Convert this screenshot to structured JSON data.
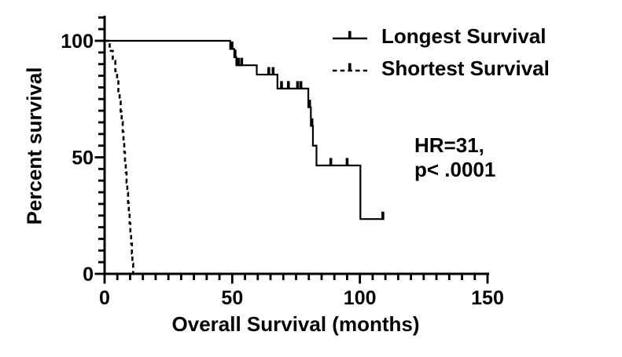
{
  "figure": {
    "background_color": "#ffffff",
    "line_color": "#000000"
  },
  "legend": {
    "items": [
      {
        "label": "Longest Survival",
        "style": "solid"
      },
      {
        "label": "Shortest Survival",
        "style": "dashed"
      }
    ]
  },
  "annotation": {
    "line1": "HR=31,",
    "line2": "p< .0001"
  },
  "chart_data": {
    "type": "line",
    "variant": "kaplan_meier_step",
    "title": "",
    "xlabel": "Overall Survival (months)",
    "ylabel": "Percent survival",
    "xlim": [
      0,
      150
    ],
    "ylim": [
      0,
      100
    ],
    "x_ticks_major": [
      0,
      50,
      100,
      150
    ],
    "x_tick_minor_step": 5,
    "y_ticks_major": [
      0,
      50,
      100
    ],
    "y_tick_minor_step": 5,
    "y_axis_ticks_extend_to": 110,
    "grid": false,
    "legend_position": "top-right",
    "series": [
      {
        "name": "Longest Survival",
        "style": "solid",
        "steps": [
          [
            0,
            100
          ],
          [
            49.2,
            96.5
          ],
          [
            50.8,
            93
          ],
          [
            51.6,
            89.5
          ],
          [
            59.6,
            85.5
          ],
          [
            67.7,
            79.5
          ],
          [
            79.8,
            71.5
          ],
          [
            80.8,
            63.5
          ],
          [
            81.6,
            55
          ],
          [
            83.0,
            46.5
          ],
          [
            100.2,
            23.5
          ]
        ],
        "end_time": 109.4,
        "censors": [
          [
            49.9,
            96.5
          ],
          [
            51.1,
            93
          ],
          [
            52.4,
            89.5
          ],
          [
            53.7,
            89.5
          ],
          [
            64.3,
            85.5
          ],
          [
            66.0,
            85.5
          ],
          [
            69.3,
            79.5
          ],
          [
            72.0,
            79.5
          ],
          [
            75.6,
            79.5
          ],
          [
            76.9,
            79.5
          ],
          [
            80.3,
            71.5
          ],
          [
            81.2,
            63.5
          ],
          [
            88.6,
            46.5
          ],
          [
            95.0,
            46.5
          ],
          [
            109.0,
            23.5
          ]
        ]
      },
      {
        "name": "Shortest Survival",
        "style": "dashed",
        "steps": [
          [
            0,
            100
          ],
          [
            2.0,
            95.7
          ],
          [
            3.2,
            91.4
          ],
          [
            4.2,
            87.0
          ],
          [
            4.9,
            82.6
          ],
          [
            5.4,
            78.3
          ],
          [
            5.9,
            73.9
          ],
          [
            6.3,
            69.6
          ],
          [
            6.7,
            65.2
          ],
          [
            7.1,
            60.9
          ],
          [
            7.4,
            56.5
          ],
          [
            7.7,
            52.2
          ],
          [
            8.0,
            47.8
          ],
          [
            8.3,
            43.5
          ],
          [
            8.6,
            39.1
          ],
          [
            8.9,
            34.8
          ],
          [
            9.2,
            30.4
          ],
          [
            9.5,
            26.1
          ],
          [
            9.8,
            21.7
          ],
          [
            10.1,
            17.4
          ],
          [
            10.4,
            13.0
          ],
          [
            10.7,
            8.7
          ],
          [
            10.9,
            4.3
          ],
          [
            11.2,
            0
          ]
        ],
        "end_time": 11.2,
        "censors": []
      }
    ],
    "annotation_text": "HR=31, p< .0001"
  }
}
